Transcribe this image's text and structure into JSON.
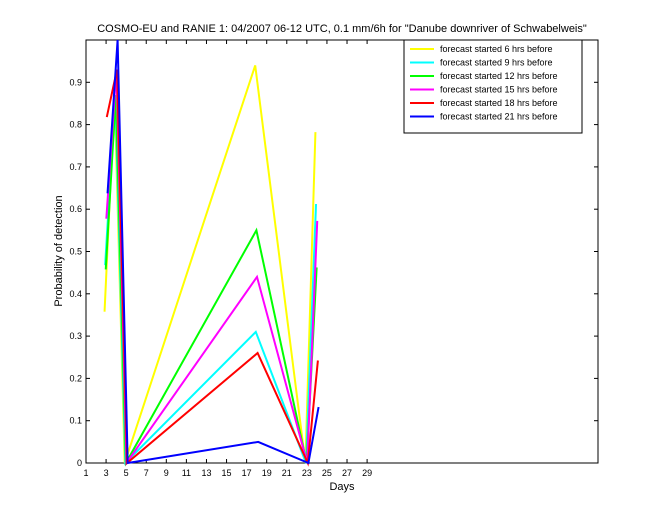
{
  "chart_data": {
    "type": "line",
    "title": "COSMO-EU and RANIE 1: 04/2007 06-12 UTC, 0.1 mm/6h for \"Danube downriver of Schwabelweis\"",
    "x_label": "Days",
    "y_label": "Probability of detection",
    "x": [
      3,
      4,
      5,
      18,
      23,
      24
    ],
    "series": [
      {
        "name": "forecast started 6 hrs before",
        "color": "#ffff00",
        "values": [
          0.36,
          0.87,
          0,
          0.94,
          0,
          0.78
        ]
      },
      {
        "name": "forecast started 9 hrs before",
        "color": "#00ffff",
        "values": [
          0.47,
          0.87,
          0,
          0.31,
          0,
          0.61
        ]
      },
      {
        "name": "forecast started 12 hrs before",
        "color": "#00ff00",
        "values": [
          0.46,
          0.87,
          0,
          0.55,
          0,
          0.46
        ]
      },
      {
        "name": "forecast started 15 hrs before",
        "color": "#ff00ff",
        "values": [
          0.58,
          0.93,
          0,
          0.44,
          0,
          0.57
        ]
      },
      {
        "name": "forecast started 18 hrs before",
        "color": "#ff0000",
        "values": [
          0.82,
          0.93,
          0,
          0.26,
          0,
          0.24
        ]
      },
      {
        "name": "forecast started 21 hrs before",
        "color": "#0000ff",
        "values": [
          0.64,
          1.0,
          0,
          0.05,
          0,
          0.13
        ]
      }
    ],
    "xlim": [
      1,
      52
    ],
    "xticks": [
      1,
      3,
      5,
      7,
      9,
      11,
      13,
      15,
      17,
      19,
      21,
      23,
      25,
      27,
      29
    ],
    "ylim": [
      0,
      1
    ],
    "yticks": [
      0,
      0.1,
      0.2,
      0.3,
      0.4,
      0.5,
      0.6,
      0.7,
      0.8,
      0.9
    ],
    "grid": false,
    "legend": "top-right"
  }
}
